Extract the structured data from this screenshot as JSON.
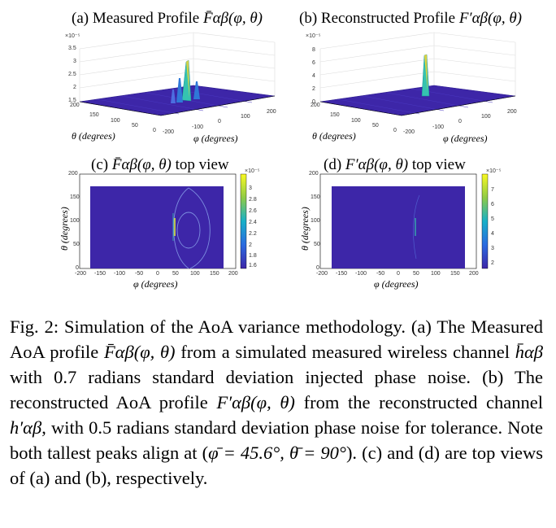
{
  "panels": {
    "a": {
      "label": "(a) Measured Profile",
      "symbol": "F̄αβ(φ, θ)",
      "exp": "×10⁻⁵",
      "z_ticks": [
        "3.5",
        "3",
        "2.5",
        "2",
        "1.5"
      ],
      "theta_ticks": [
        "200",
        "150",
        "100",
        "50",
        "0"
      ],
      "phi_ticks": [
        "-200",
        "-100",
        "0",
        "100",
        "200"
      ],
      "xlabel": "φ (degrees)",
      "ylabel": "θ (degrees)"
    },
    "b": {
      "label": "(b) Reconstructed Profile",
      "symbol": "F′αβ(φ, θ)",
      "exp": "×10⁻⁵",
      "z_ticks": [
        "8",
        "6",
        "4",
        "2",
        "0"
      ],
      "theta_ticks": [
        "200",
        "150",
        "100",
        "50",
        "0"
      ],
      "phi_ticks": [
        "-200",
        "-100",
        "0",
        "100",
        "200"
      ],
      "xlabel": "φ (degrees)",
      "ylabel": "θ (degrees)"
    },
    "c": {
      "label_pre": "(c)",
      "symbol": "F̄αβ(φ, θ)",
      "label_post": "top view",
      "y_ticks": [
        "200",
        "150",
        "100",
        "50",
        "0"
      ],
      "x_ticks": [
        "-200",
        "-150",
        "-100",
        "-50",
        "0",
        "50",
        "100",
        "150",
        "200"
      ],
      "cb_exp": "×10⁻⁵",
      "cb_ticks": [
        "3",
        "2.8",
        "2.6",
        "2.4",
        "2.2",
        "2",
        "1.8",
        "1.6"
      ],
      "xlabel": "φ (degrees)",
      "ylabel": "θ (degrees)"
    },
    "d": {
      "label_pre": "(d)",
      "symbol": "F′αβ(φ, θ)",
      "label_post": "top view",
      "y_ticks": [
        "200",
        "150",
        "100",
        "50",
        "0"
      ],
      "x_ticks": [
        "-200",
        "-150",
        "-100",
        "-50",
        "0",
        "50",
        "100",
        "150",
        "200"
      ],
      "cb_exp": "×10⁻⁵",
      "cb_ticks": [
        "7",
        "6",
        "5",
        "4",
        "3",
        "2"
      ],
      "xlabel": "φ (degrees)",
      "ylabel": "θ (degrees)"
    }
  },
  "caption": {
    "t1": "Fig. 2: Simulation of the AoA variance methodology. (a) The Measured AoA profile ",
    "s1": "F̄αβ(φ, θ)",
    "t2": " from a simulated measured wireless channel ",
    "s2": "h̄αβ",
    "t3": " with 0.7 radians standard deviation injected phase noise. (b) The reconstructed AoA profile ",
    "s3": "F′αβ(φ, θ)",
    "t4": " from the reconstructed channel ",
    "s4": "h′αβ",
    "t5": ", with 0.5 radians standard deviation phase noise for tolerance. Note both tallest peaks align at (",
    "s5": "φ̄ = 45.6°, θ̄ = 90°",
    "t6": "). (c) and (d) are top views of (a) and (b), respectively."
  },
  "colors": {
    "surface": "#3d26a8",
    "surface_edge": "#2a1b8c",
    "peak": "#35c3b0",
    "ring": "#7d8fe0"
  }
}
